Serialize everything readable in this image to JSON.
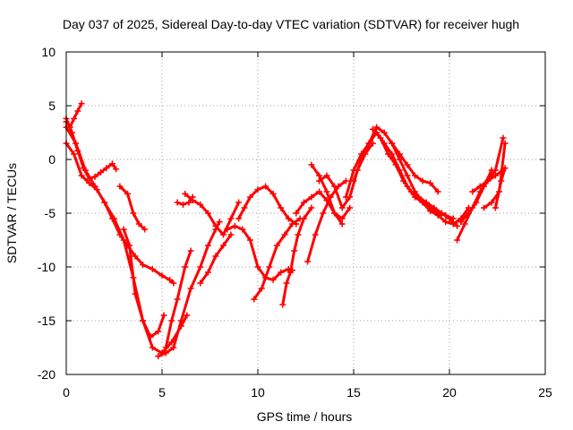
{
  "chart_data": {
    "type": "line",
    "title": "Day 037 of 2025, Sidereal Day-to-day VTEC variation (SDTVAR) for receiver hugh",
    "xlabel": "GPS time / hours",
    "ylabel": "SDTVAR / TECUs",
    "xlim": [
      0,
      25
    ],
    "ylim": [
      -20,
      10
    ],
    "xticks": [
      0,
      5,
      10,
      15,
      20,
      25
    ],
    "yticks": [
      -20,
      -15,
      -10,
      -5,
      0,
      5,
      10
    ],
    "grid": true,
    "marker": "plus",
    "color": "#ff0000",
    "series": [
      {
        "x": [
          0.0,
          0.2,
          0.4,
          0.6,
          0.8
        ],
        "y": [
          3.5,
          3.0,
          3.8,
          4.5,
          5.2
        ]
      },
      {
        "x": [
          0.0,
          0.3,
          0.6,
          0.9,
          1.2,
          1.5,
          1.8,
          2.1,
          2.4,
          2.6
        ],
        "y": [
          3.8,
          2.5,
          0.8,
          -0.8,
          -1.8,
          -1.6,
          -1.2,
          -0.8,
          -0.4,
          -0.9
        ]
      },
      {
        "x": [
          0.0,
          0.4,
          0.8,
          1.2,
          1.6,
          2.0,
          2.4,
          2.8,
          3.2,
          3.6,
          4.0,
          4.5,
          5.0,
          5.4,
          5.6
        ],
        "y": [
          1.5,
          0.5,
          -1.5,
          -2.2,
          -2.8,
          -4.0,
          -5.5,
          -7.0,
          -8.0,
          -9.0,
          -9.8,
          -10.2,
          -10.8,
          -11.2,
          -11.5
        ]
      },
      {
        "x": [
          0.0,
          0.5,
          1.0,
          1.5,
          2.0,
          2.5,
          3.0,
          3.5,
          4.0,
          4.5,
          5.0,
          5.5,
          6.0,
          6.3
        ],
        "y": [
          3.0,
          1.5,
          -1.0,
          -2.5,
          -4.0,
          -5.5,
          -7.5,
          -11.0,
          -15.0,
          -17.5,
          -18.0,
          -17.0,
          -15.5,
          -14.5
        ]
      },
      {
        "x": [
          2.8,
          3.2,
          3.5,
          3.8,
          4.1
        ],
        "y": [
          -2.5,
          -3.2,
          -5.0,
          -6.0,
          -6.5
        ]
      },
      {
        "x": [
          3.0,
          3.3,
          3.6,
          4.0,
          4.4,
          4.8,
          5.1
        ],
        "y": [
          -6.5,
          -8.0,
          -12.5,
          -15.0,
          -16.5,
          -16.0,
          -14.5
        ]
      },
      {
        "x": [
          4.8,
          5.2,
          5.6,
          6.0,
          6.5,
          7.0,
          7.4,
          7.8,
          8.0
        ],
        "y": [
          -18.3,
          -18.0,
          -17.5,
          -15.0,
          -12.0,
          -10.0,
          -8.0,
          -6.5,
          -5.8
        ]
      },
      {
        "x": [
          5.2,
          5.5,
          5.8,
          6.2,
          6.5
        ],
        "y": [
          -17.5,
          -15.0,
          -13.0,
          -10.0,
          -8.5
        ]
      },
      {
        "x": [
          5.8,
          6.1,
          6.4,
          6.6
        ],
        "y": [
          -4.0,
          -4.2,
          -4.0,
          -3.5
        ]
      },
      {
        "x": [
          6.2,
          6.6,
          7.0,
          7.4,
          7.8,
          8.2,
          8.6,
          9.0
        ],
        "y": [
          -3.2,
          -3.8,
          -4.2,
          -5.0,
          -6.2,
          -7.0,
          -5.5,
          -4.0
        ]
      },
      {
        "x": [
          7.0,
          7.4,
          7.8,
          8.2,
          8.6
        ],
        "y": [
          -11.5,
          -10.5,
          -9.0,
          -8.0,
          -7.0
        ]
      },
      {
        "x": [
          8.4,
          8.8,
          9.2,
          9.6,
          10.0,
          10.4,
          10.8,
          11.2,
          11.6,
          11.8
        ],
        "y": [
          -6.5,
          -6.2,
          -6.5,
          -7.5,
          -10.0,
          -11.0,
          -11.2,
          -10.5,
          -10.2,
          -10.3
        ]
      },
      {
        "x": [
          9.0,
          9.3,
          9.6,
          10.0,
          10.4,
          10.8,
          11.2,
          11.6,
          12.0
        ],
        "y": [
          -5.5,
          -4.5,
          -3.5,
          -2.8,
          -2.5,
          -3.2,
          -4.5,
          -5.5,
          -6.0
        ]
      },
      {
        "x": [
          9.8,
          10.2,
          10.6,
          11.0,
          11.4,
          11.8,
          12.2
        ],
        "y": [
          -13.0,
          -12.0,
          -10.0,
          -8.0,
          -7.0,
          -6.0,
          -5.5
        ]
      },
      {
        "x": [
          11.3,
          11.5,
          11.7,
          11.9,
          12.1,
          12.4,
          12.8
        ],
        "y": [
          -13.5,
          -11.5,
          -10.5,
          -8.5,
          -7.0,
          -5.5,
          -4.5
        ]
      },
      {
        "x": [
          12.0,
          12.4,
          12.8,
          13.2,
          13.6,
          14.0,
          14.4,
          14.8
        ],
        "y": [
          -5.0,
          -4.0,
          -3.5,
          -3.0,
          -3.8,
          -5.0,
          -5.5,
          -4.5
        ]
      },
      {
        "x": [
          12.6,
          13.0,
          13.4,
          13.8,
          14.2,
          14.6
        ],
        "y": [
          -9.5,
          -7.0,
          -5.0,
          -3.5,
          -2.5,
          -2.0
        ]
      },
      {
        "x": [
          12.8,
          13.2,
          13.6,
          14.0,
          14.4
        ],
        "y": [
          -0.5,
          -1.5,
          -3.0,
          -5.0,
          -6.0
        ]
      },
      {
        "x": [
          13.2,
          13.6,
          14.0,
          14.4,
          14.8,
          15.2,
          15.6,
          16.0
        ],
        "y": [
          -2.0,
          -1.5,
          -2.5,
          -4.5,
          -3.5,
          -1.0,
          0.5,
          1.5
        ]
      },
      {
        "x": [
          14.6,
          15.0,
          15.4,
          15.8,
          16.2,
          16.6,
          17.0,
          17.4,
          17.8,
          18.2,
          18.6,
          19.0,
          19.4,
          19.8,
          20.2,
          20.6,
          21.0
        ],
        "y": [
          -3.5,
          -1.0,
          0.5,
          1.5,
          3.0,
          2.5,
          1.5,
          0.0,
          -1.5,
          -3.0,
          -4.0,
          -4.8,
          -5.2,
          -5.8,
          -6.0,
          -5.5,
          -4.5
        ]
      },
      {
        "x": [
          15.0,
          15.4,
          15.8,
          16.2,
          16.6,
          17.0,
          17.4,
          17.8,
          18.2,
          18.6,
          19.0,
          19.4,
          19.8,
          20.2
        ],
        "y": [
          -2.0,
          0.0,
          1.5,
          2.5,
          1.5,
          0.5,
          -1.0,
          -2.5,
          -3.5,
          -4.0,
          -4.5,
          -5.0,
          -5.2,
          -5.5
        ]
      },
      {
        "x": [
          16.0,
          16.4,
          16.8,
          17.2,
          17.6,
          18.0,
          18.4,
          18.8,
          19.2,
          19.6,
          20.0,
          20.4
        ],
        "y": [
          2.8,
          2.0,
          0.5,
          -0.5,
          -2.0,
          -3.0,
          -3.5,
          -4.0,
          -4.5,
          -5.0,
          -5.5,
          -6.2
        ]
      },
      {
        "x": [
          17.0,
          17.4,
          17.8,
          18.2,
          18.6,
          19.0,
          19.4
        ],
        "y": [
          1.5,
          0.5,
          -0.5,
          -1.5,
          -2.0,
          -2.2,
          -3.0
        ]
      },
      {
        "x": [
          20.4,
          20.8,
          21.2,
          21.6,
          22.0,
          22.4,
          22.8
        ],
        "y": [
          -7.5,
          -6.0,
          -4.5,
          -3.0,
          -2.0,
          -1.5,
          -1.0
        ]
      },
      {
        "x": [
          20.6,
          21.0,
          21.4,
          21.8,
          22.2
        ],
        "y": [
          -5.8,
          -5.0,
          -4.0,
          -2.5,
          -1.0
        ]
      },
      {
        "x": [
          21.2,
          21.6,
          22.0,
          22.4,
          22.8
        ],
        "y": [
          -3.0,
          -2.5,
          -2.0,
          -1.0,
          2.0
        ]
      },
      {
        "x": [
          21.8,
          22.2,
          22.6,
          22.9
        ],
        "y": [
          -4.5,
          -4.0,
          -3.0,
          1.5
        ]
      },
      {
        "x": [
          22.4,
          22.7,
          22.9
        ],
        "y": [
          -4.5,
          -2.0,
          -0.8
        ]
      }
    ]
  }
}
